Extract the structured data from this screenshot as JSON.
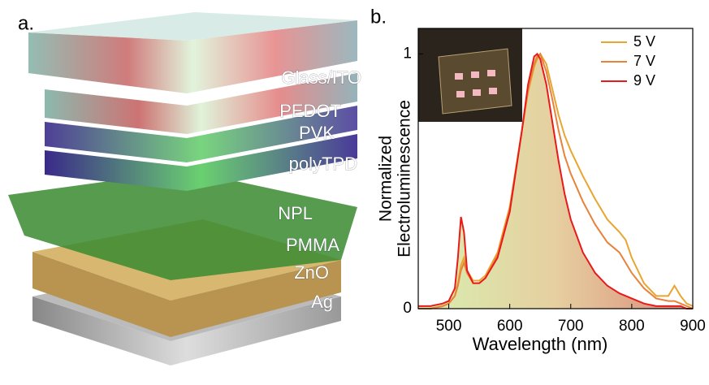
{
  "panel_a": {
    "label": "a.",
    "layers": [
      "Glass/ITO",
      "PEDOT",
      "PVK",
      "polyTPD",
      "NPL",
      "PMMA",
      "ZnO",
      "Ag"
    ]
  },
  "chart_data": {
    "type": "line",
    "panel_label": "b.",
    "xlabel": "Wavelength (nm)",
    "ylabel": [
      "Normalized",
      "Electroluminescence"
    ],
    "x": [
      450,
      470,
      490,
      500,
      510,
      515,
      520,
      525,
      530,
      540,
      550,
      560,
      580,
      600,
      620,
      630,
      640,
      645,
      650,
      660,
      670,
      680,
      690,
      700,
      720,
      740,
      760,
      780,
      790,
      800,
      820,
      840,
      860,
      870,
      880,
      890,
      900
    ],
    "series": [
      {
        "name": "5 V",
        "color": "#e8a530",
        "values": [
          0,
          0,
          0.01,
          0.02,
          0.05,
          0.1,
          0.17,
          0.2,
          0.15,
          0.11,
          0.11,
          0.13,
          0.22,
          0.4,
          0.7,
          0.85,
          0.95,
          0.98,
          1.0,
          0.96,
          0.86,
          0.76,
          0.68,
          0.62,
          0.52,
          0.43,
          0.35,
          0.3,
          0.27,
          0.2,
          0.1,
          0.05,
          0.05,
          0.09,
          0.05,
          0.02,
          0.01
        ]
      },
      {
        "name": "7 V",
        "color": "#e8823a",
        "values": [
          0,
          0,
          0.01,
          0.02,
          0.05,
          0.09,
          0.15,
          0.18,
          0.14,
          0.1,
          0.1,
          0.12,
          0.21,
          0.39,
          0.7,
          0.86,
          0.96,
          0.99,
          1.0,
          0.93,
          0.82,
          0.7,
          0.6,
          0.53,
          0.42,
          0.33,
          0.26,
          0.22,
          0.18,
          0.14,
          0.08,
          0.04,
          0.03,
          0.03,
          0.02,
          0.01,
          0
        ]
      },
      {
        "name": "9 V",
        "color": "#e81a1a",
        "values": [
          0.01,
          0.01,
          0.02,
          0.03,
          0.08,
          0.2,
          0.36,
          0.3,
          0.15,
          0.1,
          0.1,
          0.12,
          0.2,
          0.38,
          0.7,
          0.88,
          0.99,
          1.0,
          0.98,
          0.88,
          0.73,
          0.58,
          0.45,
          0.35,
          0.22,
          0.14,
          0.09,
          0.06,
          0.05,
          0.04,
          0.02,
          0.01,
          0.01,
          0.01,
          0.01,
          0,
          0
        ]
      }
    ],
    "xlim": [
      450,
      900
    ],
    "xticks": [
      500,
      600,
      700,
      800,
      900
    ],
    "ylim": [
      0,
      1.1
    ],
    "yticks": [
      0,
      1
    ],
    "legend": "upper right"
  }
}
